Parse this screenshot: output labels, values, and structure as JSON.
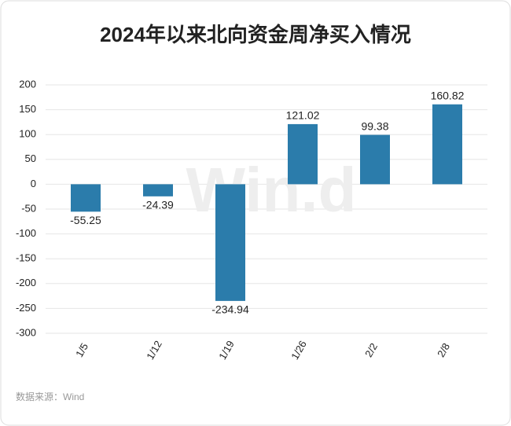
{
  "chart_data": {
    "type": "bar",
    "title": "2024年以来北向资金周净买入情况",
    "categories": [
      "1/5",
      "1/12",
      "1/19",
      "1/26",
      "2/2",
      "2/8"
    ],
    "values": [
      -55.25,
      -24.39,
      -234.94,
      121.02,
      99.38,
      160.82
    ],
    "color": "#2b7cab",
    "ylim": [
      -300,
      200
    ],
    "yticks": [
      -300,
      -250,
      -200,
      -150,
      -100,
      -50,
      0,
      50,
      100,
      150,
      200
    ],
    "grid": true,
    "watermark": "Win.d",
    "source": "数据来源：Wind"
  }
}
